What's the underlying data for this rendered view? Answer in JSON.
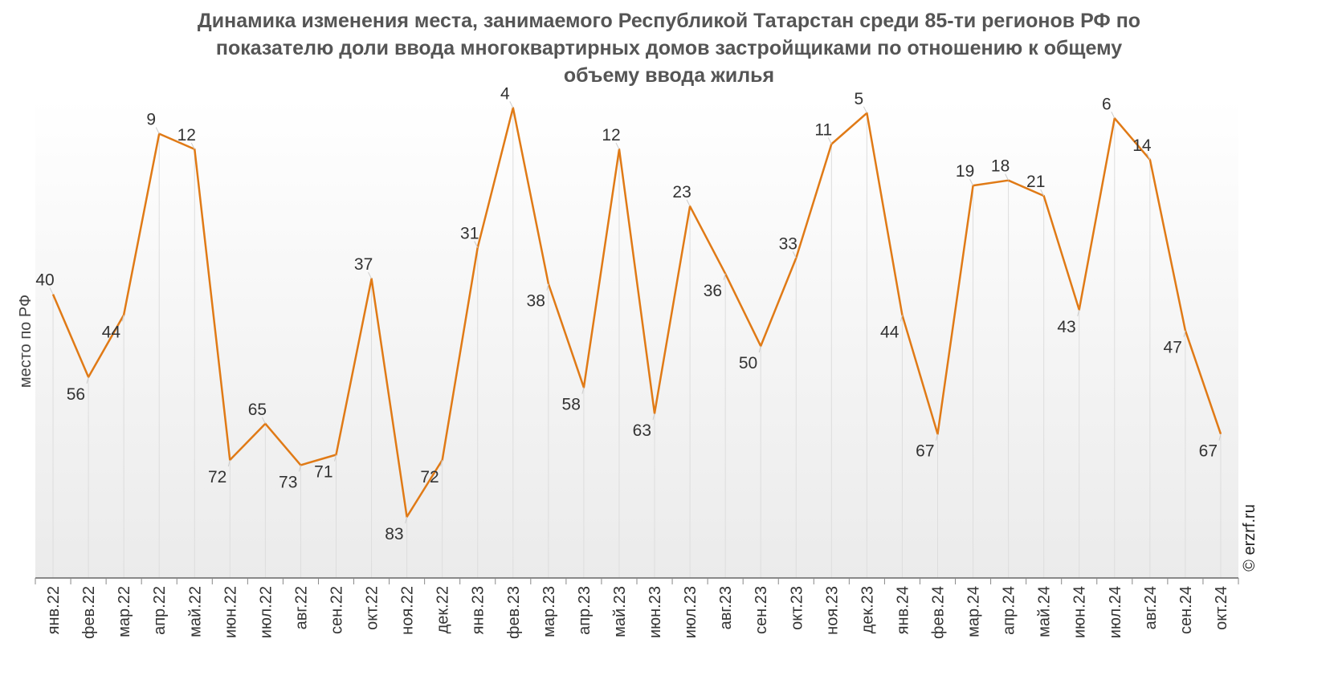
{
  "chart_data": {
    "type": "line",
    "title_lines": [
      "Динамика изменения места, занимаемого Республикой Татарстан среди 85-ти регионов РФ по",
      "показателю доли ввода многоквартирных домов застройщиками по отношению к общему",
      "объему ввода жилья"
    ],
    "ylabel": "место по РФ",
    "xlabel": "",
    "y_reversed": true,
    "ylim": [
      1,
      85
    ],
    "grid": "vertical",
    "legend": "none",
    "line_color": "#E07A16",
    "categories": [
      "янв.22",
      "фев.22",
      "мар.22",
      "апр.22",
      "май.22",
      "июн.22",
      "июл.22",
      "авг.22",
      "сен.22",
      "окт.22",
      "ноя.22",
      "дек.22",
      "янв.23",
      "фев.23",
      "мар.23",
      "апр.23",
      "май.23",
      "июн.23",
      "июл.23",
      "авг.23",
      "сен.23",
      "окт.23",
      "ноя.23",
      "дек.23",
      "янв.24",
      "фев.24",
      "мар.24",
      "апр.24",
      "май.24",
      "июн.24",
      "июл.24",
      "авг.24",
      "сен.24",
      "окт.24"
    ],
    "values": [
      40,
      56,
      44,
      9,
      12,
      72,
      65,
      73,
      71,
      37,
      83,
      72,
      31,
      4,
      38,
      58,
      12,
      63,
      23,
      36,
      50,
      33,
      11,
      5,
      44,
      67,
      19,
      18,
      21,
      43,
      6,
      14,
      47,
      67
    ],
    "label_pos": [
      "above",
      "below",
      "below",
      "above",
      "above",
      "below",
      "above",
      "below",
      "below",
      "above",
      "below",
      "below",
      "above",
      "above",
      "below",
      "below",
      "above",
      "below",
      "above",
      "below",
      "below",
      "above",
      "above",
      "above",
      "below",
      "below",
      "above",
      "above",
      "above",
      "below",
      "above",
      "above",
      "below",
      "below"
    ]
  },
  "watermark": "© erzrf.ru"
}
